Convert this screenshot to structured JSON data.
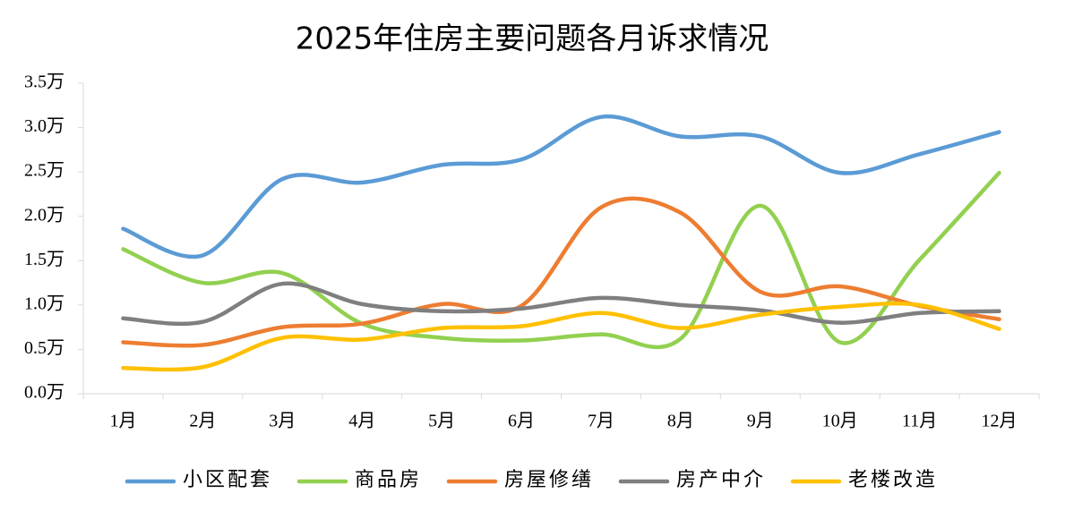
{
  "chart_data": {
    "type": "line",
    "title": "2025年住房主要问题各月诉求情况",
    "categories": [
      "1月",
      "2月",
      "3月",
      "4月",
      "5月",
      "6月",
      "7月",
      "8月",
      "9月",
      "10月",
      "11月",
      "12月"
    ],
    "series": [
      {
        "name": "小区配套",
        "color": "#5B9BD5",
        "values": [
          1.86,
          1.56,
          2.42,
          2.38,
          2.58,
          2.64,
          3.12,
          2.9,
          2.9,
          2.49,
          2.7,
          2.95
        ]
      },
      {
        "name": "商品房",
        "color": "#92D050",
        "values": [
          1.63,
          1.25,
          1.36,
          0.79,
          0.63,
          0.6,
          0.67,
          0.62,
          2.12,
          0.58,
          1.51,
          2.49
        ]
      },
      {
        "name": "房屋修缮",
        "color": "#ED7D31",
        "values": [
          0.58,
          0.55,
          0.75,
          0.79,
          1.01,
          0.99,
          2.1,
          2.04,
          1.15,
          1.21,
          0.99,
          0.84
        ]
      },
      {
        "name": "房产中介",
        "color": "#7F7F7F",
        "values": [
          0.85,
          0.81,
          1.24,
          1.01,
          0.93,
          0.96,
          1.08,
          1.0,
          0.94,
          0.8,
          0.91,
          0.93
        ]
      },
      {
        "name": "老楼改造",
        "color": "#FFC000",
        "values": [
          0.29,
          0.3,
          0.63,
          0.61,
          0.74,
          0.76,
          0.91,
          0.74,
          0.89,
          0.98,
          1.0,
          0.73
        ]
      }
    ],
    "ylim": [
      0,
      3.5
    ],
    "yticks": [
      {
        "value": 0,
        "label": "0.0万"
      },
      {
        "value": 0.5,
        "label": "0.5万"
      },
      {
        "value": 1,
        "label": "1.0万"
      },
      {
        "value": 1.5,
        "label": "1.5万"
      },
      {
        "value": 2,
        "label": "2.0万"
      },
      {
        "value": 2.5,
        "label": "2.5万"
      },
      {
        "value": 3,
        "label": "3.0万"
      },
      {
        "value": 3.5,
        "label": "3.5万"
      }
    ],
    "smooth": true,
    "legend": "bottom"
  }
}
